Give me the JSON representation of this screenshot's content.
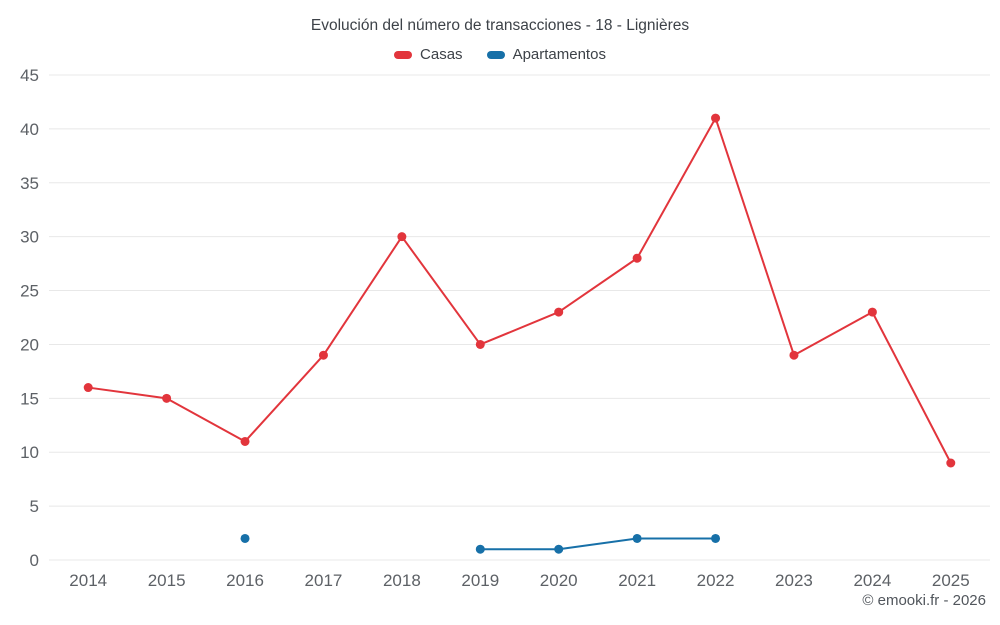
{
  "title": "Evolución del número de transacciones - 18 - Lignières",
  "footer": "© emooki.fr - 2026",
  "colors": {
    "casas": "#e2353c",
    "apartamentos": "#1770a8",
    "grid": "#e8e8e8",
    "tick_text": "#5d6166"
  },
  "chart_data": {
    "type": "line",
    "title": "Evolución del número de transacciones - 18 - Lignières",
    "x": [
      2014,
      2015,
      2016,
      2017,
      2018,
      2019,
      2020,
      2021,
      2022,
      2023,
      2024,
      2025
    ],
    "series": [
      {
        "name": "Casas",
        "color": "#e2353c",
        "values": [
          16,
          15,
          11,
          19,
          30,
          20,
          23,
          28,
          41,
          19,
          23,
          9
        ]
      },
      {
        "name": "Apartamentos",
        "color": "#1770a8",
        "values": [
          null,
          null,
          2,
          null,
          null,
          1,
          1,
          2,
          2,
          null,
          null,
          null
        ]
      }
    ],
    "xlabel": "",
    "ylabel": "",
    "ylim": [
      0,
      45
    ],
    "ytick_step": 5,
    "grid": "horizontal",
    "legend_position": "top"
  }
}
